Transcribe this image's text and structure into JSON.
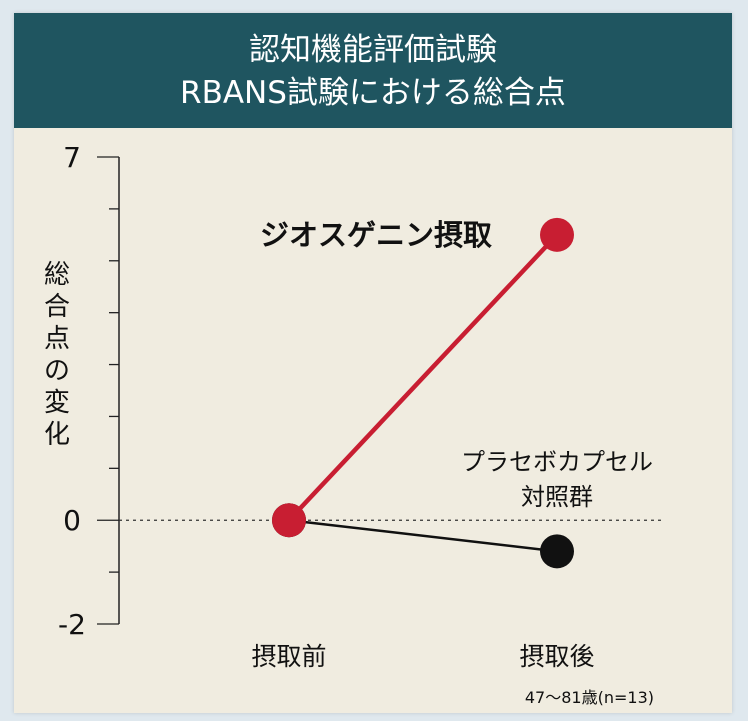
{
  "chart_data": {
    "type": "line",
    "title": "認知機能評価試験",
    "subtitle": "RBANS試験における総合点",
    "ylabel": "総合点の変化",
    "xlabel": "",
    "categories": [
      "摂取前",
      "摂取後"
    ],
    "ylim": [
      -2,
      7
    ],
    "yticks": [
      -2,
      0,
      7
    ],
    "y_tick_labels": [
      "-2",
      "0",
      "7"
    ],
    "baseline": 0,
    "series": [
      {
        "name": "ジオスゲニン摂取",
        "values": [
          0,
          5.5
        ],
        "color": "#c81e32"
      },
      {
        "name": "プラセボカプセル対照群",
        "values": [
          0,
          -0.6
        ],
        "color": "#111111"
      }
    ],
    "footnote": "47〜81歳(n=13)",
    "grid": false
  },
  "colors": {
    "header_bg": "#1f5560",
    "panel_bg": "#f0ece0",
    "accent": "#c81e32"
  }
}
